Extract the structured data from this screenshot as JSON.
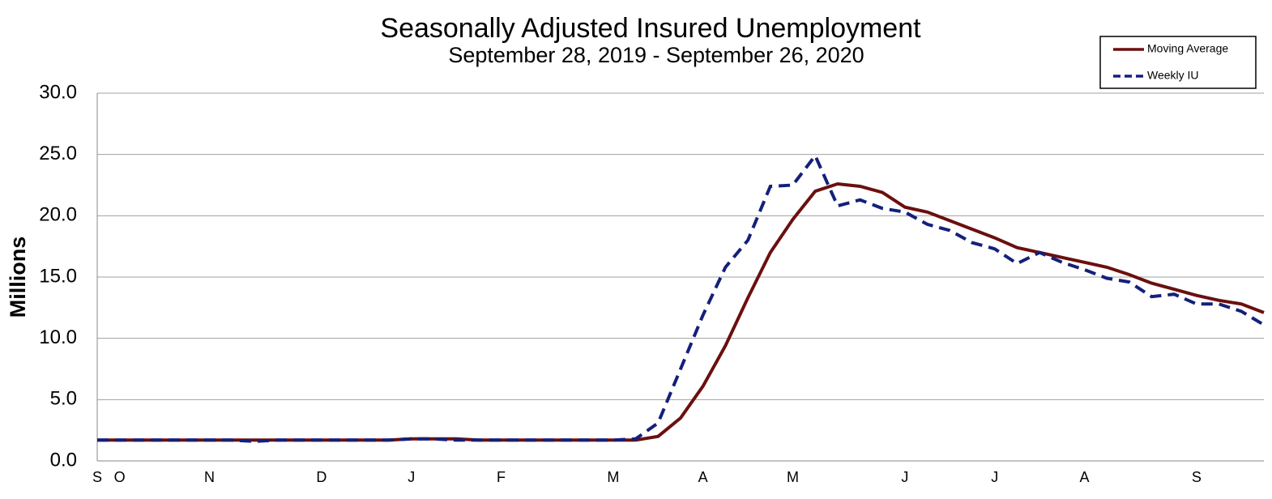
{
  "chart_data": {
    "type": "line",
    "title": "Seasonally Adjusted Insured Unemployment",
    "subtitle": "September 28, 2019 - September 26, 2020",
    "y_label": "Millions",
    "categories": [
      "S",
      "O",
      null,
      null,
      null,
      "N",
      null,
      null,
      null,
      null,
      "D",
      null,
      null,
      null,
      "J",
      null,
      null,
      null,
      "F",
      null,
      null,
      null,
      null,
      "M",
      null,
      null,
      null,
      "A",
      null,
      null,
      null,
      "M",
      null,
      null,
      null,
      null,
      "J",
      null,
      null,
      null,
      "J",
      null,
      null,
      null,
      "A",
      null,
      null,
      null,
      null,
      "S",
      null,
      null,
      null
    ],
    "series": [
      {
        "name": "Moving Average",
        "color": "#6b0f0f",
        "dashed": false,
        "values": [
          1.7,
          1.7,
          1.7,
          1.7,
          1.7,
          1.7,
          1.7,
          1.7,
          1.7,
          1.7,
          1.7,
          1.7,
          1.7,
          1.7,
          1.8,
          1.8,
          1.8,
          1.7,
          1.7,
          1.7,
          1.7,
          1.7,
          1.7,
          1.7,
          1.7,
          2.0,
          3.5,
          6.1,
          9.4,
          13.3,
          17.0,
          19.7,
          22.0,
          22.6,
          22.4,
          21.9,
          20.7,
          20.3,
          19.6,
          18.9,
          18.2,
          17.4,
          17.0,
          16.6,
          16.2,
          15.8,
          15.2,
          14.5,
          14.0,
          13.5,
          13.1,
          12.8,
          12.1
        ]
      },
      {
        "name": "Weekly IU",
        "color": "#14207a",
        "dashed": true,
        "values": [
          1.7,
          1.7,
          1.7,
          1.7,
          1.7,
          1.7,
          1.7,
          1.6,
          1.7,
          1.7,
          1.7,
          1.7,
          1.7,
          1.7,
          1.8,
          1.8,
          1.7,
          1.7,
          1.7,
          1.7,
          1.7,
          1.7,
          1.7,
          1.7,
          1.8,
          3.1,
          7.5,
          11.9,
          15.8,
          18.0,
          22.4,
          22.5,
          24.9,
          20.8,
          21.3,
          20.6,
          20.3,
          19.3,
          18.8,
          17.8,
          17.3,
          16.1,
          17.0,
          16.2,
          15.6,
          14.9,
          14.6,
          13.4,
          13.6,
          12.8,
          12.8,
          12.2,
          11.1
        ]
      }
    ],
    "ylim": [
      0,
      30
    ],
    "yticks": [
      {
        "value": 0,
        "label": "0.0"
      },
      {
        "value": 5,
        "label": "5.0"
      },
      {
        "value": 10,
        "label": "10.0"
      },
      {
        "value": 15,
        "label": "15.0"
      },
      {
        "value": 20,
        "label": "20.0"
      },
      {
        "value": 25,
        "label": "25.0"
      },
      {
        "value": 30,
        "label": "30.0"
      }
    ],
    "grid": true,
    "legend": "upper right"
  }
}
